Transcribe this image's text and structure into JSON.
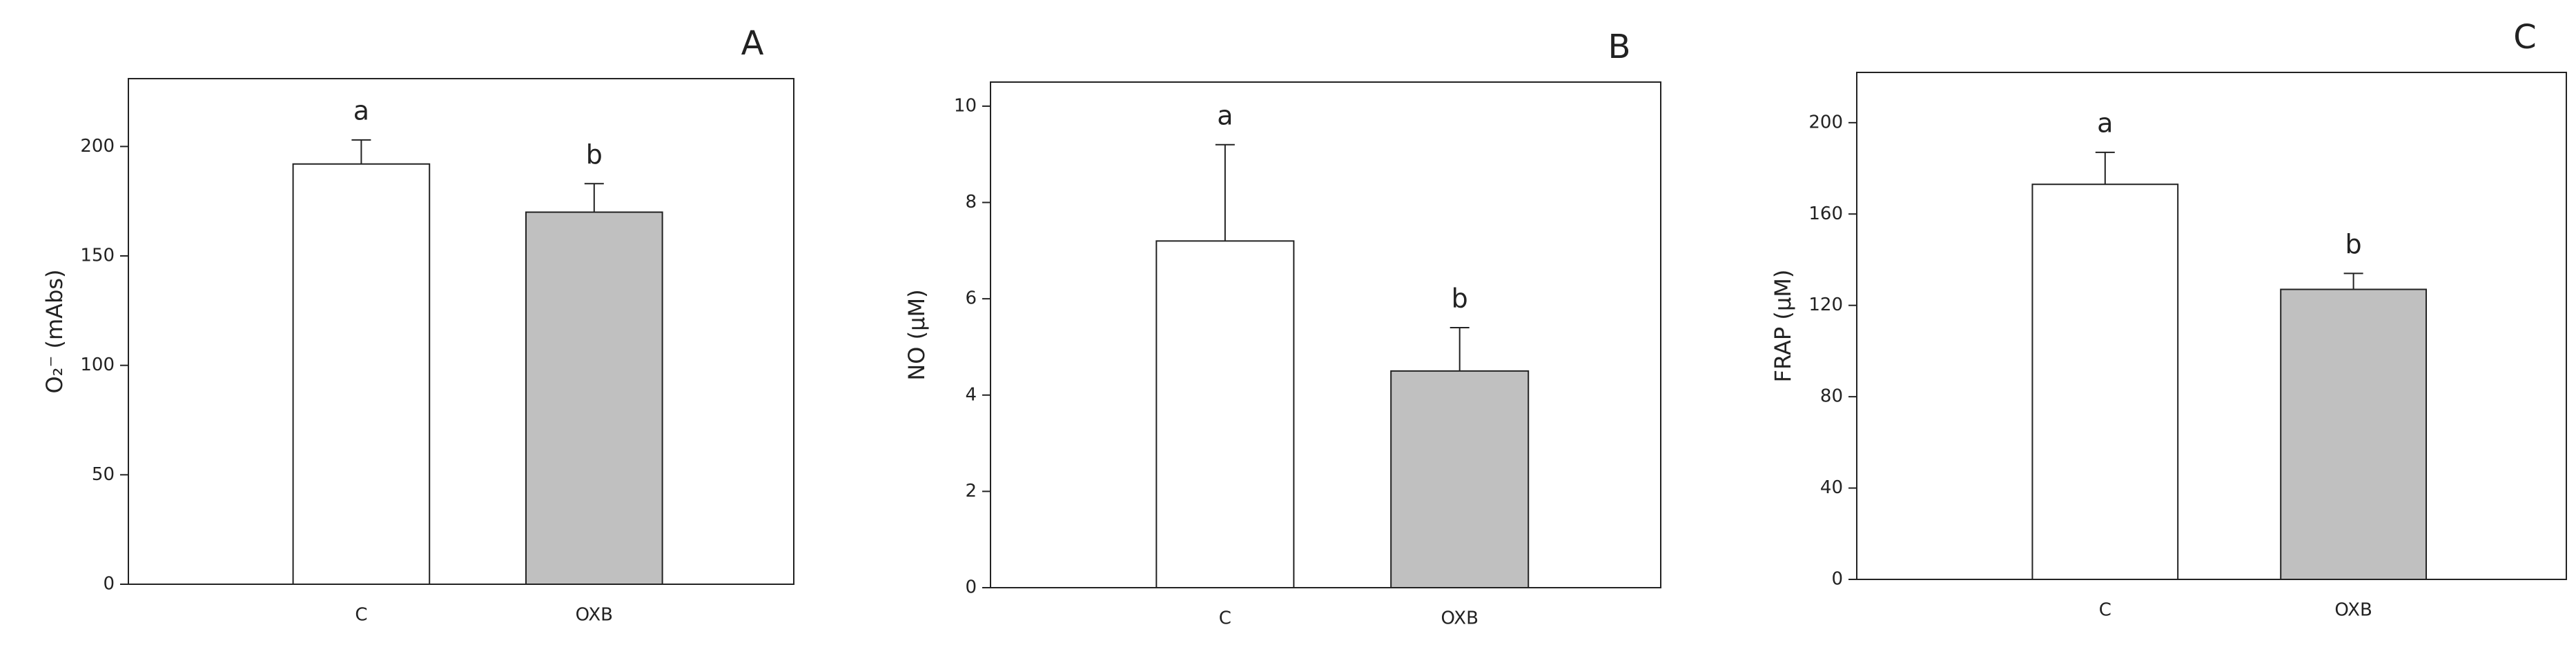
{
  "chart_data": [
    {
      "type": "bar",
      "title": "A",
      "ylabel": "O₂⁻ (mAbs)",
      "categories": [
        "C",
        "OXB"
      ],
      "values": [
        192,
        170
      ],
      "errors": [
        11,
        13
      ],
      "annotations": [
        "a",
        "b"
      ],
      "colors": [
        "#ffffff",
        "#c0c0c0"
      ],
      "ylim": [
        0,
        231
      ],
      "yticks": [
        0,
        50,
        100,
        150,
        200
      ]
    },
    {
      "type": "bar",
      "title": "B",
      "ylabel": "NO (μM)",
      "categories": [
        "C",
        "OXB"
      ],
      "values": [
        7.2,
        4.5
      ],
      "errors": [
        2.0,
        0.9
      ],
      "annotations": [
        "a",
        "b"
      ],
      "colors": [
        "#ffffff",
        "#c0c0c0"
      ],
      "ylim": [
        0,
        10.5
      ],
      "yticks": [
        0,
        2,
        4,
        6,
        8,
        10
      ]
    },
    {
      "type": "bar",
      "title": "C",
      "ylabel": "FRAP (μM)",
      "categories": [
        "C",
        "OXB"
      ],
      "values": [
        173,
        127
      ],
      "errors": [
        14,
        7
      ],
      "annotations": [
        "a",
        "b"
      ],
      "colors": [
        "#ffffff",
        "#c0c0c0"
      ],
      "ylim": [
        0,
        222
      ],
      "yticks": [
        0,
        40,
        80,
        120,
        160,
        200
      ]
    }
  ]
}
